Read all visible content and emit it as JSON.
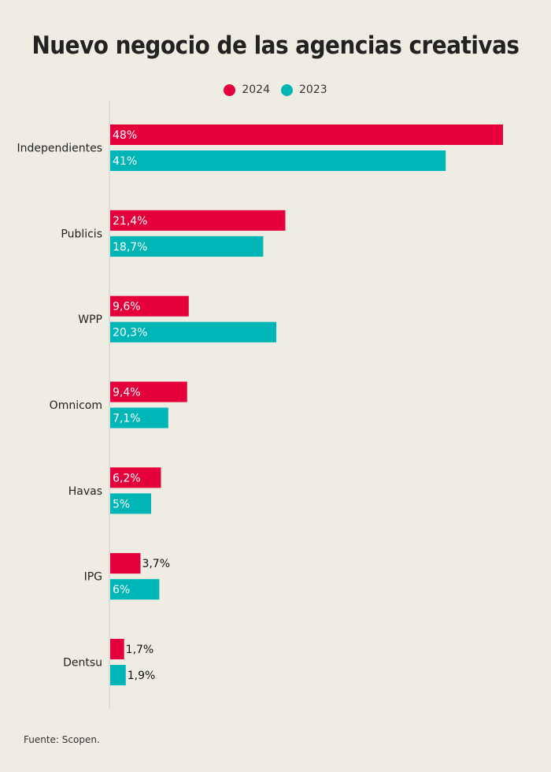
{
  "colors": {
    "series_2024": "#e4003b",
    "series_2023": "#00b5b5",
    "background": "#efede3",
    "axis_line": "#cccccc"
  },
  "footer": {
    "source": "Fuente: Scopen."
  },
  "chart_data": {
    "type": "bar",
    "orientation": "horizontal",
    "title": "Nuevo negocio de las agencias creativas",
    "legend_position": "top-center",
    "grid": false,
    "xlim": [
      0,
      48
    ],
    "categories": [
      "Independientes",
      "Publicis",
      "WPP",
      "Omnicom",
      "Havas",
      "IPG",
      "Dentsu"
    ],
    "series": [
      {
        "name": "2024",
        "color_key": "series_2024",
        "values": [
          48,
          21.4,
          9.6,
          9.4,
          6.2,
          3.7,
          1.7
        ],
        "labels": [
          "48%",
          "21,4%",
          "9,6%",
          "9,4%",
          "6,2%",
          "3,7%",
          "1,7%"
        ]
      },
      {
        "name": "2023",
        "color_key": "series_2023",
        "values": [
          41,
          18.7,
          20.3,
          7.1,
          5,
          6,
          1.9
        ],
        "labels": [
          "41%",
          "18,7%",
          "20,3%",
          "7,1%",
          "5%",
          "6%",
          "1,9%"
        ]
      }
    ]
  }
}
